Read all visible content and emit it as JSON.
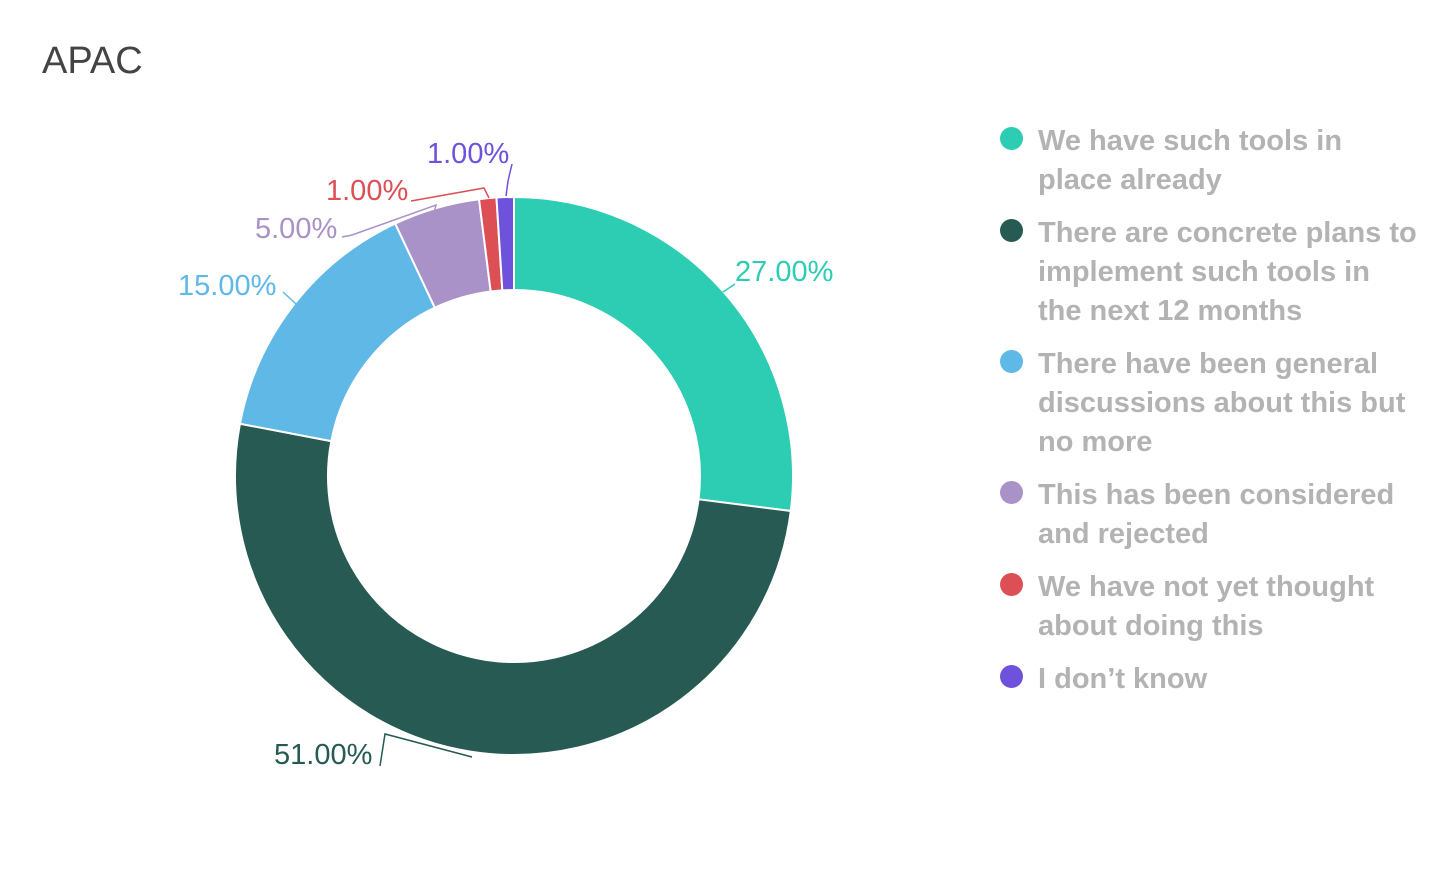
{
  "chart_data": {
    "type": "pie",
    "title": "APAC",
    "donut": true,
    "legend_position": "right",
    "slices": [
      {
        "name": "We have such tools in place already",
        "value": 27.0,
        "label": "27.00%",
        "color": "#2ccdb2"
      },
      {
        "name": "There are concrete plans to implement such tools in the next 12 months",
        "value": 51.0,
        "label": "51.00%",
        "color": "#265a52"
      },
      {
        "name": "There have been general discussions about this but no more",
        "value": 15.0,
        "label": "15.00%",
        "color": "#5fb8e6"
      },
      {
        "name": "This has been considered and rejected",
        "value": 5.0,
        "label": "5.00%",
        "color": "#a992c8"
      },
      {
        "name": "We have not yet thought about doing this",
        "value": 1.0,
        "label": "1.00%",
        "color": "#dc5055"
      },
      {
        "name": "I don’t know",
        "value": 1.0,
        "label": "1.00%",
        "color": "#6f52dc"
      }
    ]
  }
}
